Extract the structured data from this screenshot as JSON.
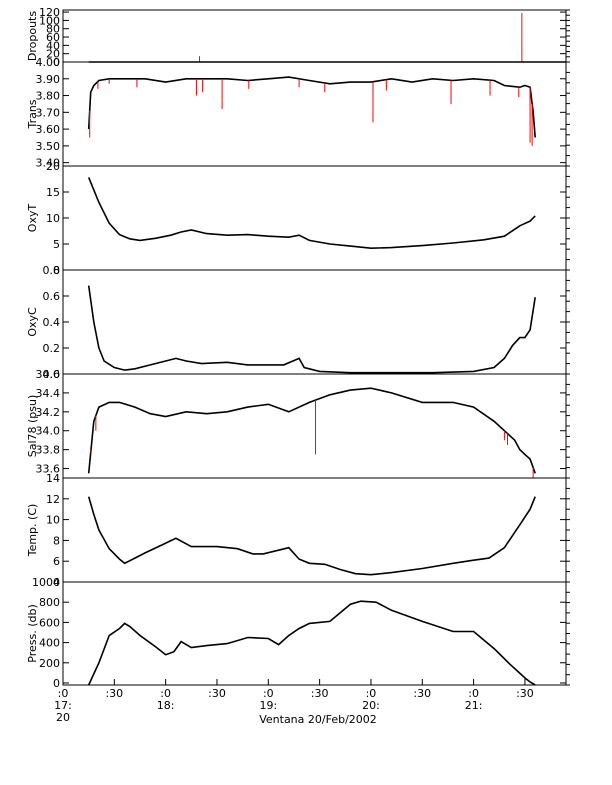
{
  "chart_data": {
    "type": "line",
    "title": "",
    "xlabel": "Ventana 20/Feb/2002",
    "xlim": [
      17.0,
      21.9
    ],
    "x_ticks": [
      {
        "value": 17.0,
        "line1": ":0",
        "line2": "17:",
        "line3": "20"
      },
      {
        "value": 17.5,
        "line1": ":30",
        "line2": "",
        "line3": ""
      },
      {
        "value": 18.0,
        "line1": ":0",
        "line2": "18:",
        "line3": ""
      },
      {
        "value": 18.5,
        "line1": ":30",
        "line2": "",
        "line3": ""
      },
      {
        "value": 19.0,
        "line1": ":0",
        "line2": "19:",
        "line3": ""
      },
      {
        "value": 19.5,
        "line1": ":30",
        "line2": "",
        "line3": ""
      },
      {
        "value": 20.0,
        "line1": ":0",
        "line2": "20:",
        "line3": ""
      },
      {
        "value": 20.5,
        "line1": ":30",
        "line2": "",
        "line3": ""
      },
      {
        "value": 21.0,
        "line1": ":0",
        "line2": "21:",
        "line3": ""
      },
      {
        "value": 21.5,
        "line1": ":30",
        "line2": "",
        "line3": ""
      }
    ],
    "colors": {
      "processed": "#000000",
      "raw": "#ff0000",
      "axis": "#000000"
    },
    "panels": [
      {
        "ylabel": "Dropouts",
        "ylim": [
          0,
          125
        ],
        "yticks": [
          "0",
          "20",
          "40",
          "60",
          "80",
          "100",
          "120"
        ],
        "ytick_values": [
          0,
          20,
          40,
          60,
          80,
          100,
          120
        ],
        "series": [
          {
            "kind": "processed",
            "x": [
              17.25,
              21.9
            ],
            "y": [
              0,
              0
            ]
          },
          {
            "kind": "spike",
            "x": [
              18.33,
              21.47
            ],
            "y": [
              14,
              118
            ]
          }
        ]
      },
      {
        "ylabel": "Trans",
        "ylim": [
          3.38,
          4.0
        ],
        "yticks": [
          "3.40",
          "3.50",
          "3.60",
          "3.70",
          "3.80",
          "3.90",
          "4.00"
        ],
        "ytick_values": [
          3.4,
          3.5,
          3.6,
          3.7,
          3.8,
          3.9,
          4.0
        ],
        "series": [
          {
            "kind": "processed",
            "x": [
              17.25,
              17.27,
              17.3,
              17.35,
              17.45,
              17.6,
              17.8,
              18.0,
              18.2,
              18.4,
              18.6,
              18.8,
              19.0,
              19.2,
              19.4,
              19.6,
              19.8,
              20.0,
              20.2,
              20.4,
              20.6,
              20.8,
              21.0,
              21.2,
              21.3,
              21.45,
              21.5,
              21.55,
              21.58,
              21.6
            ],
            "y": [
              3.6,
              3.82,
              3.86,
              3.89,
              3.9,
              3.9,
              3.9,
              3.88,
              3.9,
              3.9,
              3.9,
              3.89,
              3.9,
              3.91,
              3.89,
              3.87,
              3.88,
              3.88,
              3.9,
              3.88,
              3.9,
              3.89,
              3.9,
              3.89,
              3.86,
              3.85,
              3.86,
              3.85,
              3.7,
              3.55
            ]
          },
          {
            "kind": "spike",
            "x": [
              17.26,
              17.34,
              17.45,
              17.72,
              18.3,
              18.36,
              18.55,
              18.81,
              19.3,
              19.55,
              20.02,
              20.15,
              20.78,
              21.16,
              21.44,
              21.55,
              21.57
            ],
            "y": [
              3.55,
              3.84,
              3.87,
              3.85,
              3.8,
              3.82,
              3.72,
              3.84,
              3.85,
              3.82,
              3.64,
              3.83,
              3.75,
              3.8,
              3.79,
              3.52,
              3.5
            ]
          }
        ]
      },
      {
        "ylabel": "OxyT",
        "ylim": [
          0,
          20
        ],
        "yticks": [
          "0",
          "5",
          "10",
          "15",
          "20"
        ],
        "ytick_values": [
          0,
          5,
          10,
          15,
          20
        ],
        "series": [
          {
            "kind": "processed",
            "x": [
              17.25,
              17.35,
              17.45,
              17.55,
              17.65,
              17.75,
              17.9,
              18.05,
              18.15,
              18.25,
              18.4,
              18.6,
              18.8,
              19.0,
              19.2,
              19.3,
              19.4,
              19.6,
              19.8,
              20.0,
              20.2,
              20.5,
              20.8,
              21.1,
              21.3,
              21.45,
              21.55,
              21.6
            ],
            "y": [
              17.8,
              13,
              9,
              6.8,
              6,
              5.7,
              6.1,
              6.7,
              7.3,
              7.7,
              7,
              6.7,
              6.8,
              6.5,
              6.3,
              6.7,
              5.7,
              5,
              4.6,
              4.2,
              4.3,
              4.7,
              5.2,
              5.8,
              6.5,
              8.5,
              9.4,
              10.4
            ]
          }
        ]
      },
      {
        "ylabel": "OxyC",
        "ylim": [
          0,
          0.8
        ],
        "yticks": [
          "0.0",
          "0.2",
          "0.4",
          "0.6",
          "0.8"
        ],
        "ytick_values": [
          0,
          0.2,
          0.4,
          0.6,
          0.8
        ],
        "series": [
          {
            "kind": "processed",
            "x": [
              17.25,
              17.3,
              17.35,
              17.4,
              17.5,
              17.6,
              17.7,
              17.85,
              18.0,
              18.1,
              18.2,
              18.35,
              18.6,
              18.8,
              19.0,
              19.15,
              19.3,
              19.35,
              19.5,
              19.8,
              20.2,
              20.6,
              21.0,
              21.2,
              21.3,
              21.38,
              21.45,
              21.5,
              21.55,
              21.6
            ],
            "y": [
              0.68,
              0.4,
              0.2,
              0.1,
              0.05,
              0.03,
              0.04,
              0.07,
              0.1,
              0.12,
              0.1,
              0.08,
              0.09,
              0.07,
              0.07,
              0.07,
              0.12,
              0.05,
              0.02,
              0.01,
              0.01,
              0.01,
              0.02,
              0.05,
              0.12,
              0.22,
              0.28,
              0.28,
              0.34,
              0.59
            ]
          }
        ]
      },
      {
        "ylabel": "Sal78 (psu)",
        "ylim": [
          33.5,
          34.6
        ],
        "yticks": [
          "33.6",
          "33.8",
          "34.0",
          "34.2",
          "34.4",
          "34.6"
        ],
        "ytick_values": [
          33.6,
          33.8,
          34.0,
          34.2,
          34.4,
          34.6
        ],
        "series": [
          {
            "kind": "processed",
            "x": [
              17.25,
              17.3,
              17.35,
              17.45,
              17.55,
              17.7,
              17.85,
              18.0,
              18.2,
              18.4,
              18.6,
              18.8,
              19.0,
              19.2,
              19.4,
              19.6,
              19.8,
              20.0,
              20.2,
              20.5,
              20.8,
              21.0,
              21.2,
              21.3,
              21.4,
              21.45,
              21.5,
              21.55,
              21.6
            ],
            "y": [
              33.55,
              34.1,
              34.25,
              34.3,
              34.3,
              34.25,
              34.18,
              34.15,
              34.2,
              34.18,
              34.2,
              34.25,
              34.28,
              34.2,
              34.3,
              34.38,
              34.43,
              34.45,
              34.4,
              34.3,
              34.3,
              34.25,
              34.1,
              34.0,
              33.9,
              33.8,
              33.75,
              33.7,
              33.55
            ]
          },
          {
            "kind": "spike",
            "x": [
              17.27,
              17.32,
              19.46,
              21.3,
              21.33,
              21.58
            ],
            "y": [
              33.8,
              34.0,
              33.75,
              33.9,
              33.85,
              33.5
            ]
          }
        ]
      },
      {
        "ylabel": "Temp. (C)",
        "ylim": [
          4,
          14
        ],
        "yticks": [
          "4",
          "6",
          "8",
          "10",
          "12",
          "14"
        ],
        "ytick_values": [
          4,
          6,
          8,
          10,
          12,
          14
        ],
        "series": [
          {
            "kind": "processed",
            "x": [
              17.25,
              17.3,
              17.35,
              17.45,
              17.55,
              17.6,
              17.7,
              17.8,
              17.95,
              18.1,
              18.25,
              18.5,
              18.7,
              18.85,
              18.95,
              19.2,
              19.3,
              19.4,
              19.55,
              19.7,
              19.85,
              20.0,
              20.2,
              20.5,
              20.8,
              21.0,
              21.15,
              21.3,
              21.45,
              21.55,
              21.6
            ],
            "y": [
              12.2,
              10.5,
              9.0,
              7.2,
              6.2,
              5.8,
              6.3,
              6.8,
              7.5,
              8.2,
              7.4,
              7.4,
              7.2,
              6.7,
              6.7,
              7.3,
              6.2,
              5.8,
              5.7,
              5.2,
              4.8,
              4.7,
              4.9,
              5.3,
              5.8,
              6.1,
              6.3,
              7.3,
              9.5,
              11.0,
              12.2
            ]
          }
        ]
      },
      {
        "ylabel": "Press. (db)",
        "ylim": [
          -20,
          1000
        ],
        "yticks": [
          "0",
          "200",
          "400",
          "600",
          "800",
          "1000"
        ],
        "ytick_values": [
          0,
          200,
          400,
          600,
          800,
          1000
        ],
        "series": [
          {
            "kind": "processed",
            "x": [
              17.25,
              17.35,
              17.45,
              17.55,
              17.6,
              17.65,
              17.75,
              17.9,
              18.0,
              18.08,
              18.15,
              18.25,
              18.4,
              18.6,
              18.8,
              19.0,
              19.1,
              19.2,
              19.3,
              19.4,
              19.6,
              19.8,
              19.9,
              20.05,
              20.2,
              20.5,
              20.8,
              21.0,
              21.2,
              21.35,
              21.5,
              21.55,
              21.6
            ],
            "y": [
              -20,
              200,
              470,
              540,
              590,
              560,
              470,
              360,
              280,
              310,
              410,
              350,
              370,
              390,
              450,
              440,
              380,
              470,
              540,
              590,
              610,
              780,
              810,
              800,
              720,
              610,
              510,
              510,
              340,
              190,
              50,
              10,
              -20
            ]
          }
        ]
      }
    ]
  }
}
